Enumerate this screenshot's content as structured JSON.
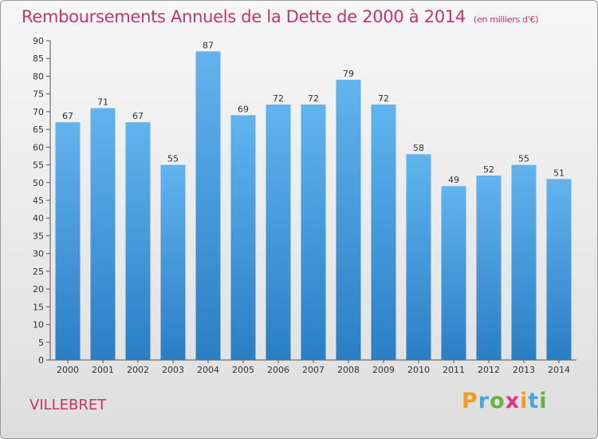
{
  "header": {
    "title": "Remboursements Annuels de la Dette de 2000 à 2014",
    "unit": "(en milliers d'€)"
  },
  "footer": {
    "commune": "VILLEBRET",
    "brand": [
      "P",
      "r",
      "o",
      "x",
      "i",
      "t",
      "i"
    ],
    "brand_colors": [
      "#f29a1d",
      "#4aa3df",
      "#6ab23d",
      "#e0338c",
      "#f29a1d",
      "#4aa3df",
      "#6ab23d"
    ]
  },
  "colors": {
    "bar_top": "#62b4ee",
    "bar_bottom": "#2a7ec4",
    "title": "#c8336c"
  },
  "chart_data": {
    "type": "bar",
    "categories": [
      "2000",
      "2001",
      "2002",
      "2003",
      "2004",
      "2005",
      "2006",
      "2007",
      "2008",
      "2009",
      "2010",
      "2011",
      "2012",
      "2013",
      "2014"
    ],
    "values": [
      67,
      71,
      67,
      55,
      87,
      69,
      72,
      72,
      79,
      72,
      58,
      49,
      52,
      55,
      51
    ],
    "ylim": [
      0,
      90
    ],
    "yticks": [
      0,
      5,
      10,
      15,
      20,
      25,
      30,
      35,
      40,
      45,
      50,
      55,
      60,
      65,
      70,
      75,
      80,
      85,
      90
    ],
    "grid": false,
    "legend": "none"
  }
}
